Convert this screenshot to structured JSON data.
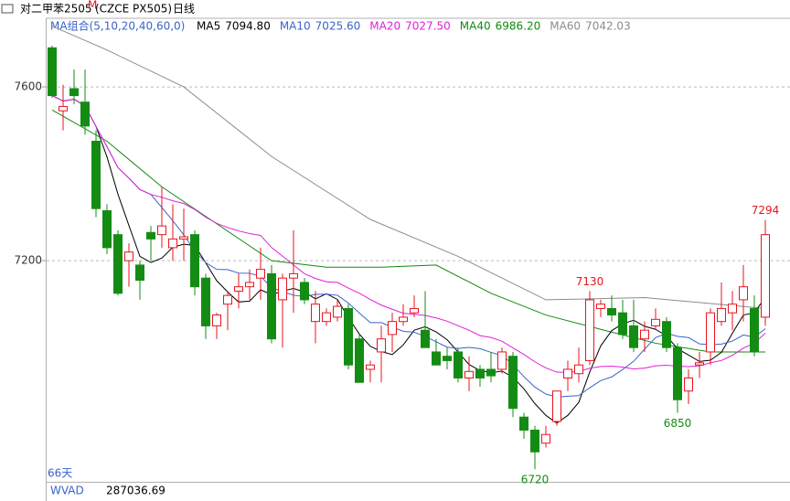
{
  "chart_data": {
    "type": "candlestick",
    "title": "对二甲苯2505",
    "title_mark": "M",
    "symbol": "(CZCE PX505)",
    "period": "日线",
    "ma_group": "MA组合(5,10,20,40,60,0)",
    "ma_legend": [
      {
        "name": "MA5",
        "value": "7094.80",
        "color": "#000000"
      },
      {
        "name": "MA10",
        "value": "7025.60",
        "color": "#3a64c8"
      },
      {
        "name": "MA20",
        "value": "7027.50",
        "color": "#e020d8"
      },
      {
        "name": "MA40",
        "value": "6986.20",
        "color": "#108a10"
      },
      {
        "name": "MA60",
        "value": "7042.03",
        "color": "#8c8c8c"
      }
    ],
    "ylim": [
      6710,
      7758
    ],
    "yticks": [
      7200,
      7600
    ],
    "grid": true,
    "up_color": "#e8141e",
    "down_color": "#148c14",
    "candles": [
      [
        7690,
        7695,
        7575,
        7580
      ],
      [
        7545,
        7605,
        7500,
        7555
      ],
      [
        7596,
        7640,
        7560,
        7580
      ],
      [
        7565,
        7640,
        7490,
        7510
      ],
      [
        7475,
        7500,
        7300,
        7320
      ],
      [
        7315,
        7330,
        7215,
        7230
      ],
      [
        7260,
        7270,
        7120,
        7125
      ],
      [
        7200,
        7240,
        7140,
        7220
      ],
      [
        7190,
        7200,
        7110,
        7155
      ],
      [
        7265,
        7280,
        7200,
        7250
      ],
      [
        7260,
        7370,
        7230,
        7280
      ],
      [
        7230,
        7330,
        7200,
        7250
      ],
      [
        7250,
        7320,
        7200,
        7255
      ],
      [
        7260,
        7270,
        7120,
        7140
      ],
      [
        7160,
        7170,
        7020,
        7050
      ],
      [
        7050,
        7080,
        7020,
        7075
      ],
      [
        7100,
        7130,
        7040,
        7120
      ],
      [
        7130,
        7170,
        7090,
        7140
      ],
      [
        7140,
        7180,
        7110,
        7150
      ],
      [
        7160,
        7230,
        7110,
        7180
      ],
      [
        7170,
        7190,
        7010,
        7020
      ],
      [
        7110,
        7170,
        7000,
        7160
      ],
      [
        7160,
        7270,
        7080,
        7170
      ],
      [
        7150,
        7160,
        7100,
        7110
      ],
      [
        7060,
        7130,
        7010,
        7100
      ],
      [
        7060,
        7090,
        7050,
        7080
      ],
      [
        7070,
        7110,
        7060,
        7095
      ],
      [
        7090,
        7100,
        6950,
        6960
      ],
      [
        7020,
        7030,
        6920,
        6920
      ],
      [
        6950,
        6970,
        6920,
        6960
      ],
      [
        6990,
        7050,
        6920,
        7020
      ],
      [
        7030,
        7080,
        6990,
        7060
      ],
      [
        7060,
        7100,
        7050,
        7070
      ],
      [
        7080,
        7120,
        7070,
        7090
      ],
      [
        7040,
        7130,
        7000,
        7000
      ],
      [
        6990,
        7020,
        6960,
        6960
      ],
      [
        6980,
        7000,
        6950,
        6970
      ],
      [
        6990,
        7000,
        6920,
        6930
      ],
      [
        6930,
        6980,
        6900,
        6945
      ],
      [
        6950,
        6960,
        6910,
        6930
      ],
      [
        6950,
        6990,
        6920,
        6935
      ],
      [
        6950,
        7000,
        6940,
        6990
      ],
      [
        6980,
        6990,
        6840,
        6860
      ],
      [
        6840,
        6850,
        6790,
        6810
      ],
      [
        6810,
        6820,
        6720,
        6760
      ],
      [
        6780,
        6820,
        6770,
        6800
      ],
      [
        6830,
        6900,
        6820,
        6900
      ],
      [
        6930,
        6970,
        6900,
        6950
      ],
      [
        6940,
        7000,
        6920,
        6960
      ],
      [
        6970,
        7130,
        6960,
        7110
      ],
      [
        7090,
        7110,
        7070,
        7100
      ],
      [
        7090,
        7120,
        7060,
        7075
      ],
      [
        7080,
        7110,
        7020,
        7030
      ],
      [
        7050,
        7110,
        6990,
        7000
      ],
      [
        7020,
        7060,
        6990,
        7040
      ],
      [
        7050,
        7090,
        7040,
        7065
      ],
      [
        7060,
        7070,
        6990,
        7000
      ],
      [
        7000,
        7010,
        6850,
        6880
      ],
      [
        6900,
        6950,
        6870,
        6930
      ],
      [
        6960,
        6990,
        6930,
        6965
      ],
      [
        6990,
        7090,
        6960,
        7080
      ],
      [
        7060,
        7150,
        7050,
        7090
      ],
      [
        7080,
        7130,
        7040,
        7100
      ],
      [
        7110,
        7190,
        7060,
        7140
      ],
      [
        7090,
        7120,
        6980,
        6990
      ],
      [
        7070,
        7294,
        7050,
        7260
      ]
    ],
    "ma_lines": [
      {
        "name": "MA40",
        "color": "#108a10",
        "x": [
          0,
          5,
          10,
          15,
          20,
          25,
          30,
          35,
          40,
          45,
          50,
          55,
          60,
          65
        ],
        "values": [
          7547,
          7475,
          7370,
          7285,
          7200,
          7185,
          7185,
          7190,
          7125,
          7075,
          7042,
          7010,
          6990,
          6990
        ]
      },
      {
        "name": "MA60",
        "color": "#8c8c8c",
        "x": [
          0,
          5,
          12,
          20,
          29,
          37,
          45,
          54,
          65
        ],
        "values": [
          7740,
          7685,
          7600,
          7440,
          7295,
          7210,
          7110,
          7115,
          7090
        ]
      }
    ],
    "annotations": [
      {
        "index": 65,
        "value": 7294,
        "color": "#e8141e",
        "pos": "above"
      },
      {
        "index": 49,
        "value": 7130,
        "color": "#e8141e",
        "pos": "above"
      },
      {
        "index": 57,
        "value": 6850,
        "color": "#148c14",
        "pos": "below"
      },
      {
        "index": 44,
        "value": 6720,
        "color": "#148c14",
        "pos": "below"
      }
    ],
    "days": "66天",
    "indicator": "WVAD",
    "indicator_value": "287036.69"
  }
}
